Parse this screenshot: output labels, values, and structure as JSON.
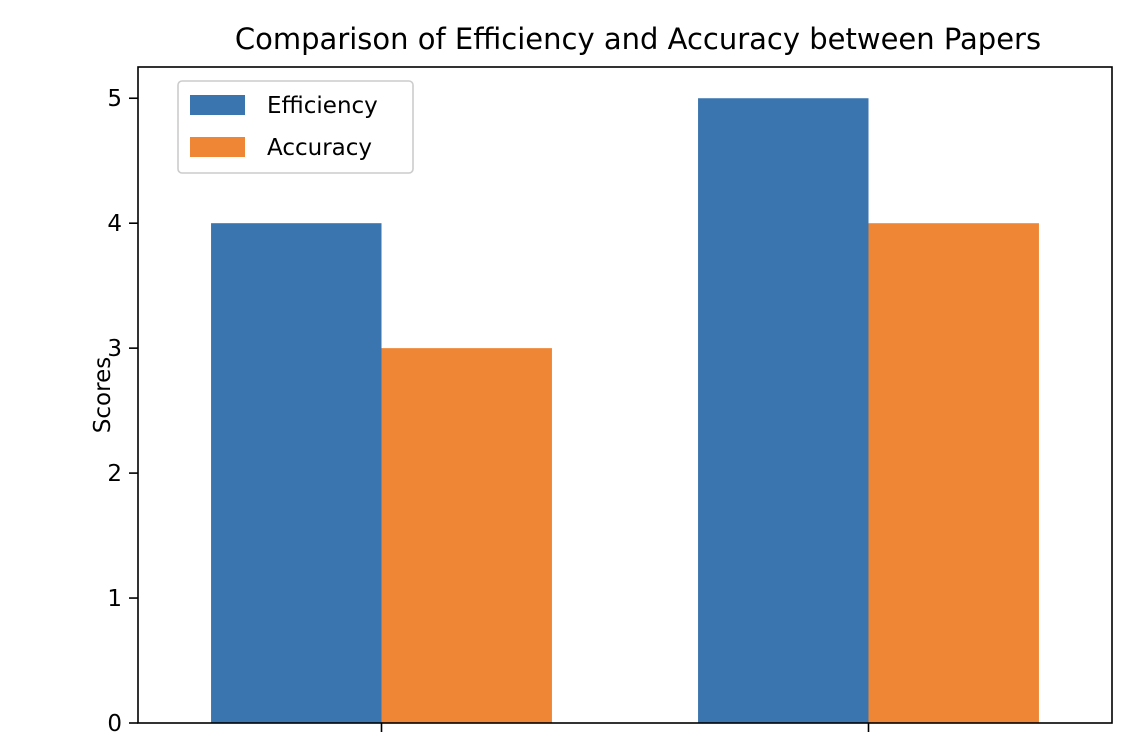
{
  "chart_data": {
    "type": "bar",
    "title": "Comparison of Efficiency and Accuracy between Papers",
    "xlabel": "",
    "ylabel": "Scores",
    "categories": [
      "",
      ""
    ],
    "series": [
      {
        "name": "Efficiency",
        "values": [
          4,
          5
        ],
        "color": "#3a75af"
      },
      {
        "name": "Accuracy",
        "values": [
          3,
          4
        ],
        "color": "#ef8636"
      }
    ],
    "ylim": [
      0,
      5.25
    ],
    "yticks": [
      0,
      1,
      2,
      3,
      4,
      5
    ],
    "grid": false,
    "legend": "top-left"
  }
}
